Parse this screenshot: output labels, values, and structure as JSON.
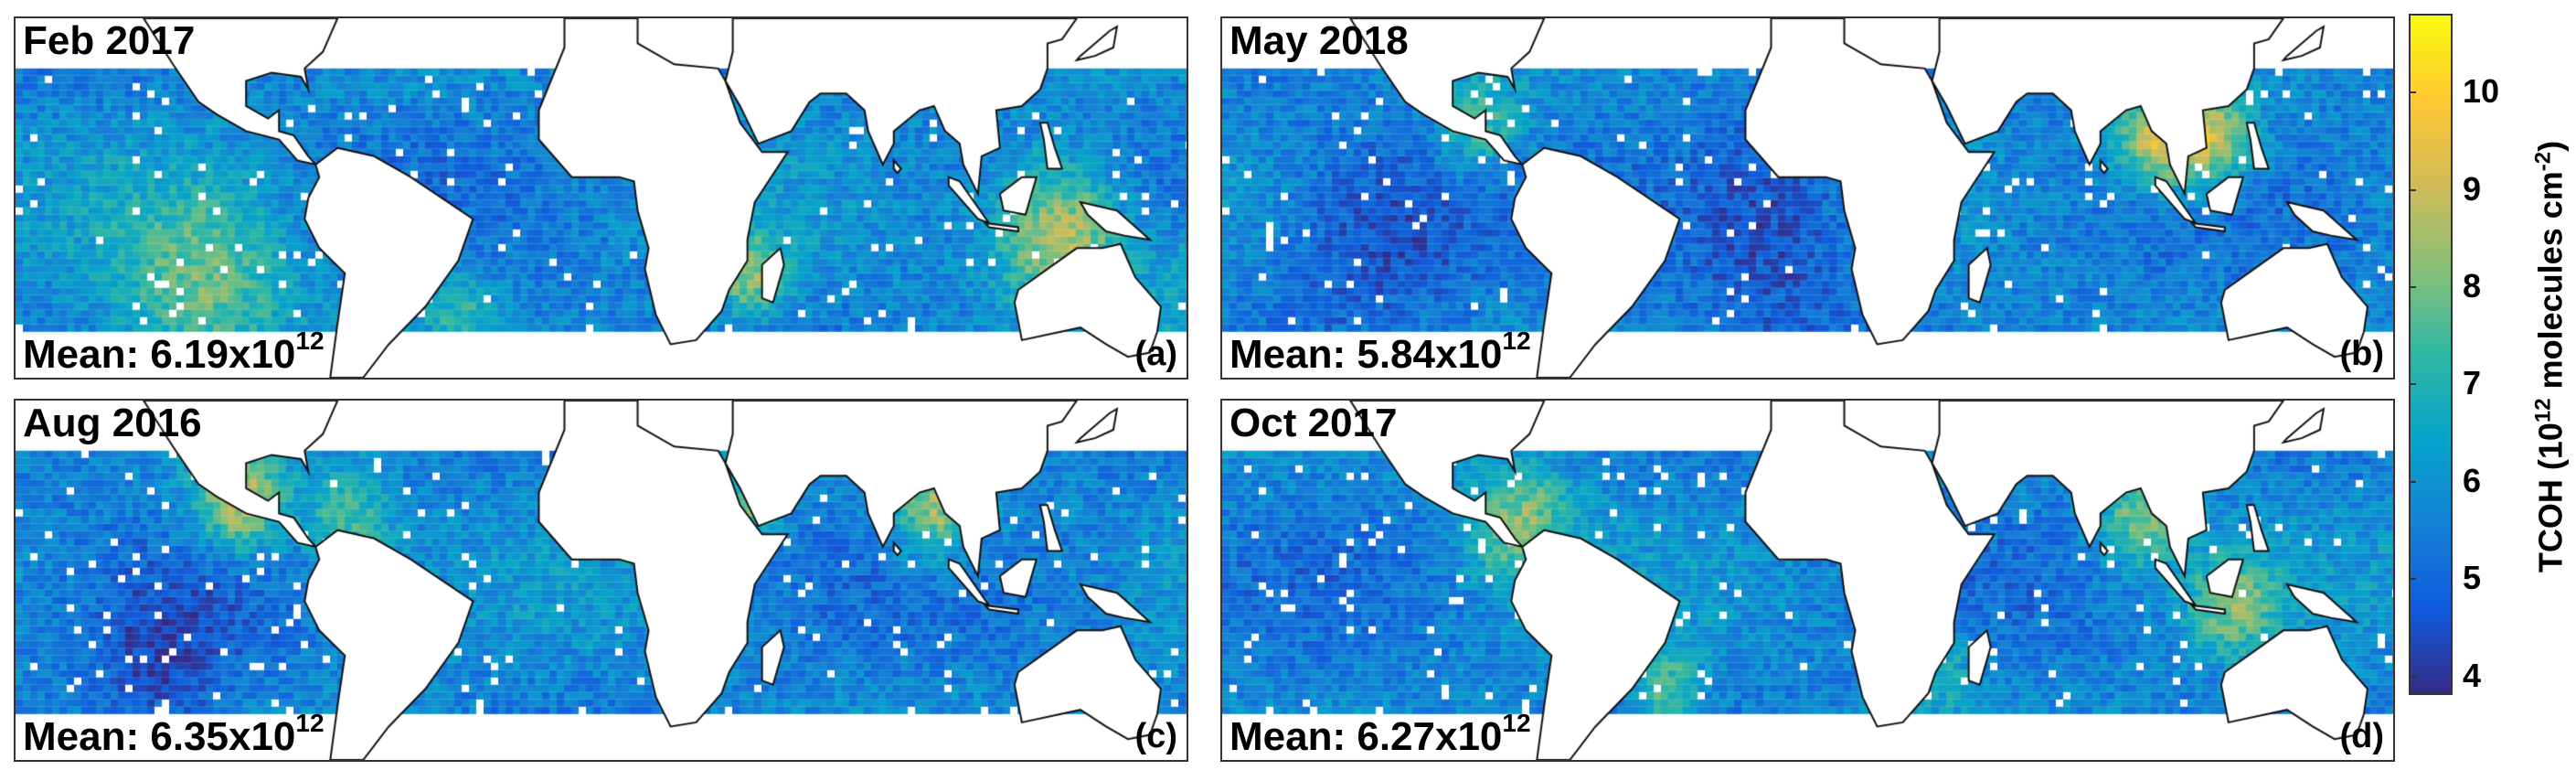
{
  "chart_data": {
    "type": "heatmap",
    "description_kind": "gridded map panels",
    "panels": [
      {
        "id": "a",
        "title": "Feb 2017",
        "mean_base": "Mean: 6.19x10",
        "mean_exp": "12",
        "label": "(a)"
      },
      {
        "id": "b",
        "title": "May 2018",
        "mean_base": "Mean: 5.84x10",
        "mean_exp": "12",
        "label": "(b)"
      },
      {
        "id": "c",
        "title": "Aug 2016",
        "mean_base": "Mean: 6.35x10",
        "mean_exp": "12",
        "label": "(c)"
      },
      {
        "id": "d",
        "title": "Oct 2017",
        "mean_base": "Mean: 6.27x10",
        "mean_exp": "12",
        "label": "(d)"
      }
    ],
    "colorbar": {
      "label_main": "TCOH (10",
      "label_exp1": "12",
      "label_mid": " molecules cm",
      "label_exp2": "-2",
      "label_end": ")",
      "range": [
        3.8,
        10.8
      ],
      "ticks": [
        "4",
        "5",
        "6",
        "7",
        "8",
        "9",
        "10"
      ],
      "colormap": "parula",
      "colors": [
        "#352a87",
        "#0f5cdd",
        "#1481d6",
        "#06a4ca",
        "#2eb7a4",
        "#87bf77",
        "#d1bb59",
        "#fec832",
        "#f9fb0e"
      ]
    }
  }
}
